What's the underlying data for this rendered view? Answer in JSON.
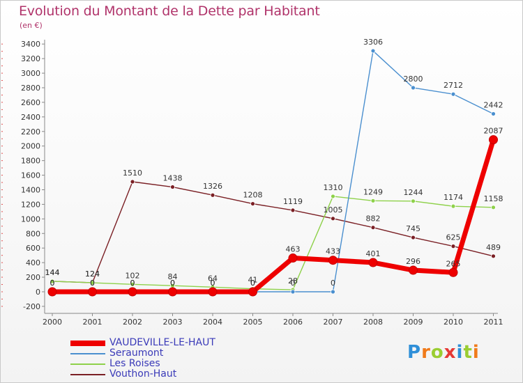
{
  "chart_data": {
    "type": "line",
    "title": "Evolution du Montant de la Dette par Habitant",
    "unit": "(en €)",
    "x": [
      "2000",
      "2001",
      "2002",
      "2003",
      "2004",
      "2005",
      "2006",
      "2007",
      "2008",
      "2009",
      "2010",
      "2011"
    ],
    "ylim": [
      -200,
      3400
    ],
    "yticks": [
      "-200",
      "0",
      "200",
      "400",
      "600",
      "800",
      "1000",
      "1200",
      "1400",
      "1600",
      "1800",
      "2000",
      "2200",
      "2400",
      "2600",
      "2800",
      "3000",
      "3200",
      "3400"
    ],
    "grid": false,
    "legend_position": "bottom-left",
    "series": [
      {
        "name": "Vouthon-Haut",
        "color": "#7a1f24",
        "values": [
          144,
          124,
          1510,
          1438,
          1326,
          1208,
          1119,
          1005,
          882,
          745,
          625,
          489
        ],
        "labels": [
          "144",
          "124",
          "1510",
          "1438",
          "1326",
          "1208",
          "1119",
          "1005",
          "882",
          "745",
          "625",
          "489"
        ]
      },
      {
        "name": "Les Roises",
        "color": "#8ed14a",
        "values": [
          144,
          124,
          102,
          84,
          64,
          41,
          28,
          1310,
          1249,
          1244,
          1174,
          1158
        ],
        "labels": [
          "144",
          "124",
          "102",
          "84",
          "64",
          "41",
          "28",
          "1310",
          "1249",
          "1244",
          "1174",
          "1158"
        ]
      },
      {
        "name": "Seraumont",
        "color": "#4a8fcf",
        "values": [
          0,
          0,
          0,
          0,
          0,
          0,
          0,
          0,
          3306,
          2800,
          2712,
          2442
        ],
        "labels": [
          "0",
          "0",
          "0",
          "0",
          "0",
          "0",
          "0",
          "0",
          "3306",
          "2800",
          "2712",
          "2442"
        ]
      },
      {
        "name": "VAUDEVILLE-LE-HAUT",
        "color": "#ee0000",
        "values": [
          0,
          0,
          0,
          0,
          0,
          0,
          463,
          433,
          401,
          296,
          265,
          2087
        ],
        "labels": [
          "0",
          "0",
          "0",
          "0",
          "0",
          "0",
          "463",
          "433",
          "401",
          "296",
          "265",
          "2087"
        ]
      }
    ]
  },
  "legend": [
    {
      "label": "VAUDEVILLE-LE-HAUT",
      "color": "#ee0000",
      "thickness": 8
    },
    {
      "label": "Seraumont",
      "color": "#4a8fcf",
      "thickness": 2
    },
    {
      "label": "Les Roises",
      "color": "#8ed14a",
      "thickness": 2
    },
    {
      "label": "Vouthon-Haut",
      "color": "#7a1f24",
      "thickness": 2
    }
  ],
  "brand": {
    "text": "Proxiti",
    "letter_colors": [
      "#2f8fd8",
      "#f07a1a",
      "#9acd32",
      "#e53935",
      "#2f8fd8",
      "#9acd32",
      "#f07a1a"
    ]
  }
}
